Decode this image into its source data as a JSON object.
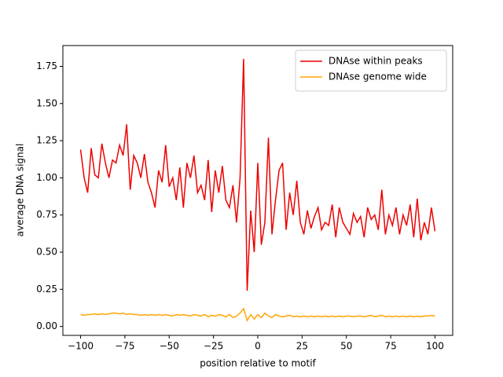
{
  "chart_data": {
    "type": "line",
    "xlabel": "position relative to motif",
    "ylabel": "average DNA signal",
    "x": [
      -100,
      -98,
      -96,
      -94,
      -92,
      -90,
      -88,
      -86,
      -84,
      -82,
      -80,
      -78,
      -76,
      -74,
      -72,
      -70,
      -68,
      -66,
      -64,
      -62,
      -60,
      -58,
      -56,
      -54,
      -52,
      -50,
      -48,
      -46,
      -44,
      -42,
      -40,
      -38,
      -36,
      -34,
      -32,
      -30,
      -28,
      -26,
      -24,
      -22,
      -20,
      -18,
      -16,
      -14,
      -12,
      -10,
      -8,
      -6,
      -4,
      -2,
      0,
      2,
      4,
      6,
      8,
      10,
      12,
      14,
      16,
      18,
      20,
      22,
      24,
      26,
      28,
      30,
      32,
      34,
      36,
      38,
      40,
      42,
      44,
      46,
      48,
      50,
      52,
      54,
      56,
      58,
      60,
      62,
      64,
      66,
      68,
      70,
      72,
      74,
      76,
      78,
      80,
      82,
      84,
      86,
      88,
      90,
      92,
      94,
      96,
      98,
      100
    ],
    "series": [
      {
        "name": "DNAse within peaks",
        "color": "#ee0000",
        "values": [
          1.19,
          1.0,
          0.9,
          1.2,
          1.02,
          1.0,
          1.23,
          1.1,
          1.0,
          1.12,
          1.1,
          1.22,
          1.15,
          1.36,
          0.92,
          1.15,
          1.1,
          1.0,
          1.16,
          0.97,
          0.9,
          0.8,
          1.05,
          0.97,
          1.22,
          0.94,
          1.0,
          0.85,
          1.07,
          0.8,
          1.1,
          1.0,
          1.15,
          0.9,
          0.95,
          0.85,
          1.12,
          0.77,
          1.05,
          0.9,
          1.08,
          0.85,
          0.8,
          0.95,
          0.7,
          1.0,
          1.8,
          0.24,
          0.78,
          0.5,
          1.1,
          0.55,
          0.7,
          1.27,
          0.62,
          0.85,
          1.05,
          1.1,
          0.65,
          0.9,
          0.75,
          0.98,
          0.7,
          0.62,
          0.78,
          0.66,
          0.74,
          0.8,
          0.65,
          0.7,
          0.68,
          0.82,
          0.6,
          0.8,
          0.7,
          0.66,
          0.62,
          0.76,
          0.7,
          0.74,
          0.6,
          0.8,
          0.72,
          0.75,
          0.65,
          0.92,
          0.62,
          0.75,
          0.68,
          0.8,
          0.62,
          0.75,
          0.68,
          0.82,
          0.6,
          0.86,
          0.58,
          0.7,
          0.62,
          0.8,
          0.64
        ]
      },
      {
        "name": "DNAse genome wide",
        "color": "#ffa500",
        "values": [
          0.08,
          0.075,
          0.08,
          0.08,
          0.085,
          0.08,
          0.085,
          0.08,
          0.085,
          0.09,
          0.09,
          0.085,
          0.09,
          0.08,
          0.085,
          0.08,
          0.08,
          0.075,
          0.08,
          0.075,
          0.08,
          0.075,
          0.08,
          0.075,
          0.08,
          0.075,
          0.07,
          0.08,
          0.075,
          0.08,
          0.075,
          0.07,
          0.08,
          0.075,
          0.07,
          0.08,
          0.065,
          0.075,
          0.07,
          0.08,
          0.075,
          0.065,
          0.08,
          0.06,
          0.07,
          0.09,
          0.12,
          0.04,
          0.08,
          0.05,
          0.08,
          0.06,
          0.09,
          0.07,
          0.06,
          0.08,
          0.07,
          0.065,
          0.07,
          0.075,
          0.065,
          0.07,
          0.065,
          0.07,
          0.065,
          0.07,
          0.065,
          0.07,
          0.065,
          0.07,
          0.065,
          0.07,
          0.065,
          0.07,
          0.065,
          0.07,
          0.07,
          0.065,
          0.07,
          0.07,
          0.065,
          0.07,
          0.075,
          0.065,
          0.07,
          0.075,
          0.065,
          0.07,
          0.065,
          0.07,
          0.065,
          0.07,
          0.065,
          0.07,
          0.065,
          0.07,
          0.065,
          0.07,
          0.07,
          0.075,
          0.07
        ]
      }
    ],
    "xlim": [
      -110,
      110
    ],
    "ylim": [
      -0.06,
      1.89
    ],
    "xticks": [
      {
        "value": -100,
        "label": "−100"
      },
      {
        "value": -75,
        "label": "−75"
      },
      {
        "value": -50,
        "label": "−50"
      },
      {
        "value": -25,
        "label": "−25"
      },
      0,
      25,
      50,
      75,
      100
    ],
    "yticks": [
      {
        "value": 0,
        "label": "0.00"
      },
      {
        "value": 0.25,
        "label": "0.25"
      },
      {
        "value": 0.5,
        "label": "0.50"
      },
      {
        "value": 0.75,
        "label": "0.75"
      },
      {
        "value": 1,
        "label": "1.00"
      },
      {
        "value": 1.25,
        "label": "1.25"
      },
      {
        "value": 1.5,
        "label": "1.50"
      },
      {
        "value": 1.75,
        "label": "1.75"
      }
    ],
    "legend": "upper right"
  }
}
